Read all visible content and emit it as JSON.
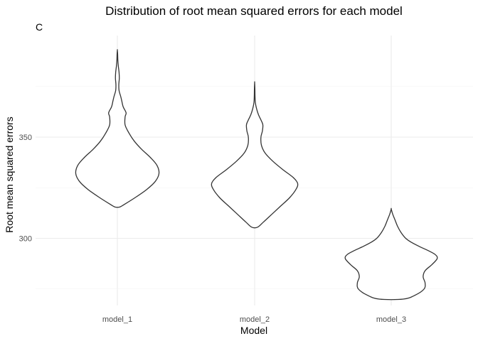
{
  "chart_data": {
    "type": "violin",
    "title": "Distribution of root mean squared errors for each model",
    "tag": "C",
    "xlabel": "Model",
    "ylabel": "Root mean squared errors",
    "categories": [
      "model_1",
      "model_2",
      "model_3"
    ],
    "y_ticks": [
      300,
      350
    ],
    "ylim": [
      270,
      400
    ],
    "grid": true,
    "violins": [
      {
        "category": "model_1",
        "min": 315.5,
        "max": 393.0,
        "profile": [
          [
            315.5,
            0.05
          ],
          [
            317,
            0.16
          ],
          [
            320,
            0.36
          ],
          [
            324,
            0.6
          ],
          [
            328,
            0.78
          ],
          [
            332,
            0.86
          ],
          [
            336,
            0.82
          ],
          [
            340,
            0.68
          ],
          [
            344,
            0.5
          ],
          [
            348,
            0.35
          ],
          [
            352,
            0.24
          ],
          [
            356,
            0.16
          ],
          [
            360,
            0.16
          ],
          [
            362,
            0.18
          ],
          [
            365,
            0.12
          ],
          [
            368,
            0.09
          ],
          [
            370,
            0.07
          ],
          [
            373,
            0.035
          ],
          [
            376,
            0.03
          ],
          [
            379,
            0.04
          ],
          [
            382,
            0.035
          ],
          [
            385,
            0.02
          ],
          [
            388,
            0.01
          ],
          [
            391,
            0.006
          ],
          [
            393,
            0.0
          ]
        ]
      },
      {
        "category": "model_2",
        "min": 305.5,
        "max": 377.0,
        "profile": [
          [
            305.5,
            0.06
          ],
          [
            308,
            0.18
          ],
          [
            312,
            0.36
          ],
          [
            316,
            0.54
          ],
          [
            320,
            0.72
          ],
          [
            324,
            0.85
          ],
          [
            327,
            0.89
          ],
          [
            330,
            0.8
          ],
          [
            334,
            0.58
          ],
          [
            338,
            0.38
          ],
          [
            342,
            0.22
          ],
          [
            346,
            0.14
          ],
          [
            350,
            0.13
          ],
          [
            353,
            0.16
          ],
          [
            356,
            0.17
          ],
          [
            358,
            0.14
          ],
          [
            361,
            0.08
          ],
          [
            364,
            0.04
          ],
          [
            367,
            0.015
          ],
          [
            370,
            0.008
          ],
          [
            374,
            0.005
          ],
          [
            377,
            0.0
          ]
        ]
      },
      {
        "category": "model_3",
        "min": 270.0,
        "max": 314.5,
        "profile": [
          [
            270,
            0.25
          ],
          [
            272,
            0.5
          ],
          [
            275,
            0.68
          ],
          [
            278,
            0.7
          ],
          [
            281,
            0.66
          ],
          [
            284,
            0.7
          ],
          [
            287,
            0.84
          ],
          [
            290,
            0.95
          ],
          [
            292,
            0.91
          ],
          [
            294,
            0.76
          ],
          [
            296,
            0.58
          ],
          [
            298,
            0.42
          ],
          [
            300,
            0.3
          ],
          [
            303,
            0.2
          ],
          [
            306,
            0.13
          ],
          [
            309,
            0.08
          ],
          [
            312,
            0.03
          ],
          [
            314.5,
            0.0
          ]
        ]
      }
    ]
  }
}
